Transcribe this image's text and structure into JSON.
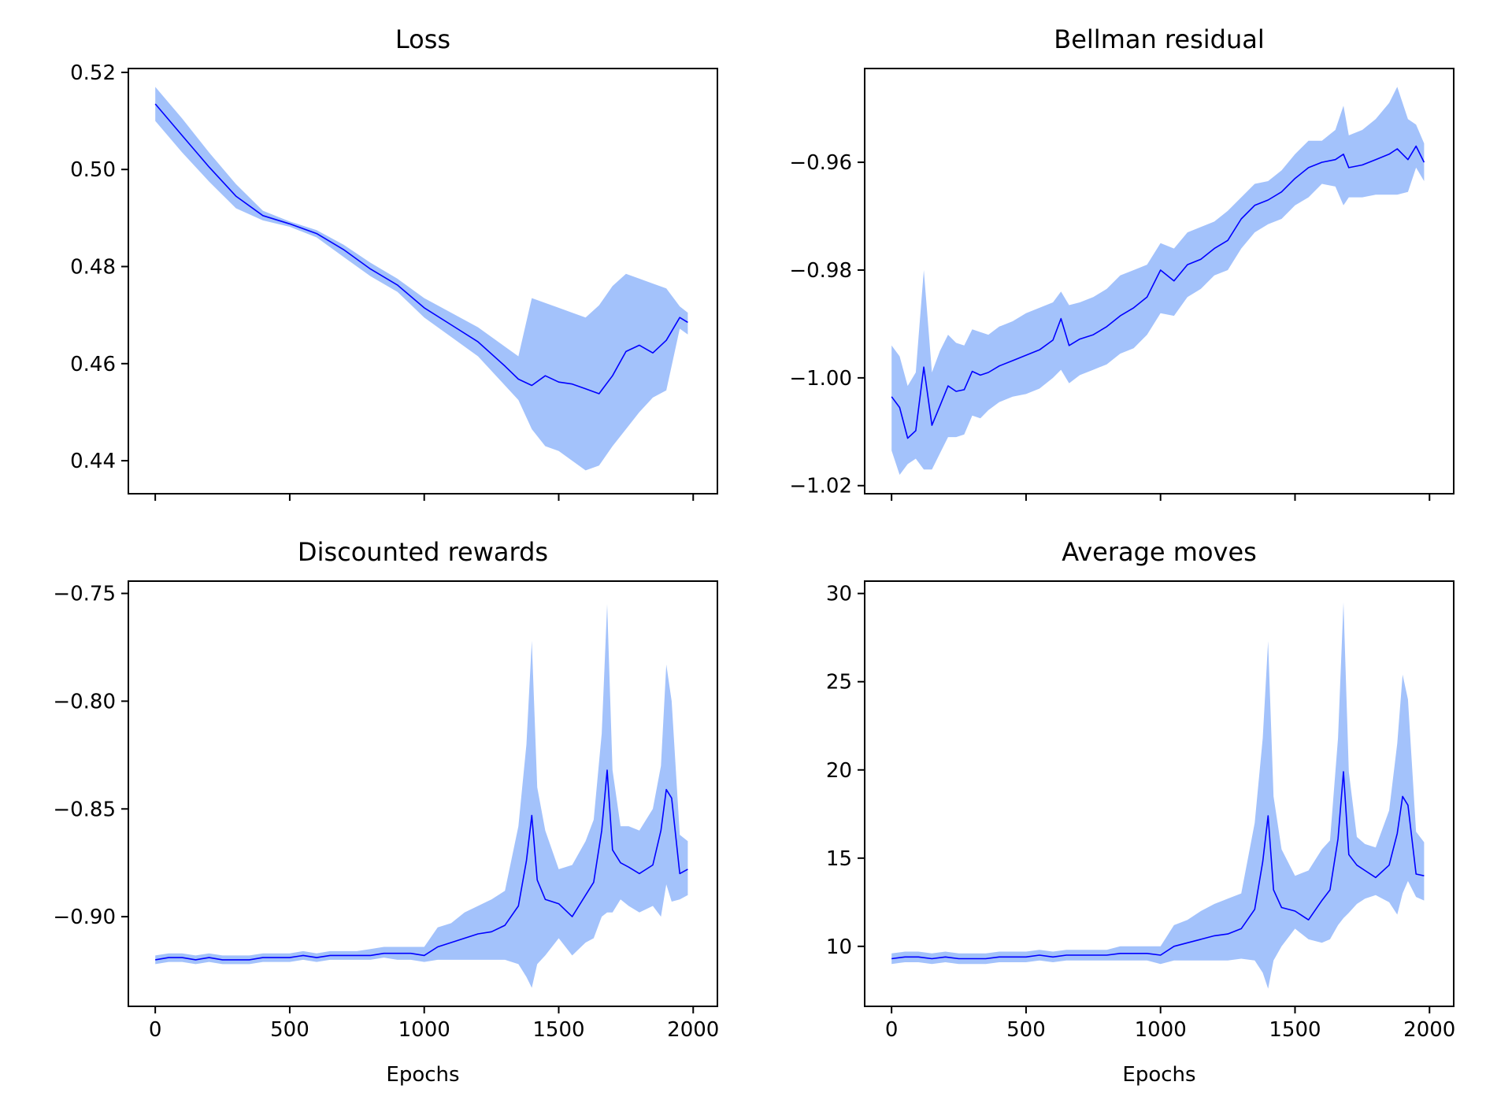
{
  "figure": {
    "xlabel": "Epochs"
  },
  "chart_data": [
    {
      "type": "line",
      "title": "Loss",
      "xlabel": "",
      "ylabel": "",
      "xlim": [
        -100,
        2090
      ],
      "ylim": [
        0.4332,
        0.5208
      ],
      "xticks": [
        0,
        500,
        1000,
        1500,
        2000
      ],
      "xtick_labels": [],
      "yticks": [
        0.44,
        0.46,
        0.48,
        0.5,
        0.52
      ],
      "ytick_labels": [
        "0.44",
        "0.46",
        "0.48",
        "0.50",
        "0.52"
      ],
      "band_color": "#a3c2fb",
      "line_color": "#0000ff",
      "series": [
        {
          "x": [
            0,
            100,
            200,
            300,
            400,
            500,
            600,
            700,
            800,
            900,
            1000,
            1100,
            1200,
            1300,
            1350,
            1400,
            1450,
            1500,
            1550,
            1600,
            1650,
            1700,
            1750,
            1800,
            1850,
            1900,
            1950,
            1980
          ],
          "mean": [
            0.5135,
            0.507,
            0.5005,
            0.4945,
            0.4905,
            0.4888,
            0.4868,
            0.4835,
            0.4795,
            0.4762,
            0.4715,
            0.468,
            0.4645,
            0.4595,
            0.4568,
            0.4555,
            0.4575,
            0.4562,
            0.4558,
            0.4548,
            0.4538,
            0.4575,
            0.4625,
            0.4638,
            0.4622,
            0.4648,
            0.4695,
            0.4685
          ],
          "upper": [
            0.517,
            0.5105,
            0.5035,
            0.497,
            0.4915,
            0.4893,
            0.4875,
            0.4845,
            0.4808,
            0.4775,
            0.4735,
            0.4705,
            0.4675,
            0.4635,
            0.4615,
            0.4735,
            0.4725,
            0.4715,
            0.4705,
            0.4695,
            0.472,
            0.476,
            0.4785,
            0.4775,
            0.4765,
            0.4755,
            0.4718,
            0.4705
          ],
          "lower": [
            0.51,
            0.5035,
            0.4975,
            0.492,
            0.4895,
            0.4882,
            0.486,
            0.482,
            0.478,
            0.4748,
            0.4695,
            0.4655,
            0.4615,
            0.4555,
            0.4525,
            0.4465,
            0.443,
            0.442,
            0.44,
            0.438,
            0.439,
            0.443,
            0.4465,
            0.45,
            0.453,
            0.4545,
            0.4672,
            0.466
          ]
        }
      ]
    },
    {
      "type": "line",
      "title": "Bellman residual",
      "xlabel": "",
      "ylabel": "",
      "xlim": [
        -100,
        2090
      ],
      "ylim": [
        -1.0215,
        -0.9426
      ],
      "xticks": [
        0,
        500,
        1000,
        1500,
        2000
      ],
      "xtick_labels": [],
      "yticks": [
        -1.02,
        -1.0,
        -0.98,
        -0.96
      ],
      "ytick_labels": [
        "−1.02",
        "−1.00",
        "−0.98",
        "−0.96"
      ],
      "band_color": "#a3c2fb",
      "line_color": "#0000ff",
      "series": [
        {
          "x": [
            0,
            30,
            60,
            90,
            120,
            150,
            180,
            210,
            240,
            270,
            300,
            330,
            360,
            400,
            450,
            500,
            550,
            600,
            630,
            660,
            700,
            750,
            800,
            850,
            900,
            950,
            1000,
            1050,
            1100,
            1150,
            1200,
            1250,
            1300,
            1350,
            1400,
            1450,
            1500,
            1550,
            1600,
            1650,
            1680,
            1700,
            1750,
            1800,
            1850,
            1880,
            1920,
            1950,
            1980
          ],
          "mean": [
            -1.0035,
            -1.0055,
            -1.0112,
            -1.0098,
            -0.998,
            -1.0088,
            -1.0052,
            -1.0015,
            -1.0025,
            -1.0022,
            -0.9988,
            -0.9995,
            -0.999,
            -0.9978,
            -0.9968,
            -0.9958,
            -0.9948,
            -0.993,
            -0.989,
            -0.994,
            -0.9928,
            -0.992,
            -0.9905,
            -0.9885,
            -0.987,
            -0.985,
            -0.98,
            -0.982,
            -0.979,
            -0.978,
            -0.976,
            -0.9745,
            -0.9705,
            -0.968,
            -0.967,
            -0.9655,
            -0.963,
            -0.961,
            -0.96,
            -0.9595,
            -0.9585,
            -0.961,
            -0.9605,
            -0.9595,
            -0.9585,
            -0.9575,
            -0.9595,
            -0.957,
            -0.96
          ],
          "upper": [
            -0.994,
            -0.996,
            -1.0015,
            -0.999,
            -0.98,
            -0.999,
            -0.995,
            -0.992,
            -0.9935,
            -0.994,
            -0.991,
            -0.9915,
            -0.992,
            -0.9905,
            -0.9895,
            -0.988,
            -0.987,
            -0.986,
            -0.984,
            -0.9865,
            -0.986,
            -0.985,
            -0.9835,
            -0.981,
            -0.98,
            -0.979,
            -0.975,
            -0.976,
            -0.973,
            -0.972,
            -0.971,
            -0.969,
            -0.9665,
            -0.964,
            -0.9635,
            -0.9615,
            -0.9585,
            -0.956,
            -0.956,
            -0.954,
            -0.9495,
            -0.955,
            -0.954,
            -0.952,
            -0.949,
            -0.946,
            -0.952,
            -0.953,
            -0.9565
          ],
          "lower": [
            -1.0135,
            -1.018,
            -1.016,
            -1.015,
            -1.017,
            -1.017,
            -1.014,
            -1.011,
            -1.011,
            -1.0105,
            -1.007,
            -1.0075,
            -1.006,
            -1.0045,
            -1.0035,
            -1.003,
            -1.002,
            -1.0,
            -0.9985,
            -1.001,
            -0.9995,
            -0.9985,
            -0.9975,
            -0.9955,
            -0.9945,
            -0.992,
            -0.988,
            -0.9885,
            -0.985,
            -0.9835,
            -0.981,
            -0.98,
            -0.976,
            -0.973,
            -0.9715,
            -0.9705,
            -0.968,
            -0.9665,
            -0.964,
            -0.9645,
            -0.968,
            -0.9665,
            -0.9665,
            -0.966,
            -0.966,
            -0.966,
            -0.9655,
            -0.961,
            -0.9635
          ]
        }
      ]
    },
    {
      "type": "line",
      "title": "Discounted rewards",
      "xlabel": "Epochs",
      "ylabel": "",
      "xlim": [
        -100,
        2090
      ],
      "ylim": [
        -0.9416,
        -0.7443
      ],
      "xticks": [
        0,
        500,
        1000,
        1500,
        2000
      ],
      "xtick_labels": [
        "0",
        "500",
        "1000",
        "1500",
        "2000"
      ],
      "yticks": [
        -0.9,
        -0.85,
        -0.8,
        -0.75
      ],
      "ytick_labels": [
        "−0.90",
        "−0.85",
        "−0.80",
        "−0.75"
      ],
      "band_color": "#a3c2fb",
      "line_color": "#0000ff",
      "series": [
        {
          "x": [
            0,
            50,
            100,
            150,
            200,
            250,
            300,
            350,
            400,
            450,
            500,
            550,
            600,
            650,
            700,
            750,
            800,
            850,
            900,
            950,
            1000,
            1050,
            1100,
            1150,
            1200,
            1250,
            1300,
            1350,
            1380,
            1400,
            1420,
            1450,
            1500,
            1550,
            1600,
            1630,
            1660,
            1680,
            1700,
            1730,
            1760,
            1800,
            1850,
            1880,
            1900,
            1920,
            1950,
            1980
          ],
          "mean": [
            -0.92,
            -0.919,
            -0.919,
            -0.92,
            -0.919,
            -0.92,
            -0.92,
            -0.92,
            -0.919,
            -0.919,
            -0.919,
            -0.918,
            -0.919,
            -0.918,
            -0.918,
            -0.918,
            -0.918,
            -0.917,
            -0.917,
            -0.917,
            -0.918,
            -0.914,
            -0.912,
            -0.91,
            -0.908,
            -0.907,
            -0.904,
            -0.895,
            -0.874,
            -0.853,
            -0.883,
            -0.892,
            -0.894,
            -0.9,
            -0.89,
            -0.884,
            -0.86,
            -0.832,
            -0.869,
            -0.875,
            -0.877,
            -0.88,
            -0.876,
            -0.86,
            -0.841,
            -0.845,
            -0.88,
            -0.878
          ],
          "upper": [
            -0.918,
            -0.917,
            -0.917,
            -0.918,
            -0.917,
            -0.918,
            -0.918,
            -0.918,
            -0.917,
            -0.917,
            -0.917,
            -0.916,
            -0.917,
            -0.916,
            -0.916,
            -0.916,
            -0.915,
            -0.914,
            -0.914,
            -0.914,
            -0.914,
            -0.905,
            -0.903,
            -0.898,
            -0.895,
            -0.892,
            -0.888,
            -0.858,
            -0.82,
            -0.772,
            -0.84,
            -0.86,
            -0.878,
            -0.876,
            -0.865,
            -0.855,
            -0.815,
            -0.755,
            -0.832,
            -0.858,
            -0.858,
            -0.86,
            -0.85,
            -0.83,
            -0.783,
            -0.8,
            -0.862,
            -0.865
          ],
          "lower": [
            -0.922,
            -0.921,
            -0.921,
            -0.922,
            -0.921,
            -0.922,
            -0.922,
            -0.922,
            -0.921,
            -0.921,
            -0.921,
            -0.92,
            -0.921,
            -0.92,
            -0.92,
            -0.92,
            -0.92,
            -0.919,
            -0.92,
            -0.92,
            -0.921,
            -0.92,
            -0.92,
            -0.92,
            -0.92,
            -0.92,
            -0.92,
            -0.922,
            -0.928,
            -0.933,
            -0.922,
            -0.918,
            -0.91,
            -0.918,
            -0.912,
            -0.91,
            -0.9,
            -0.898,
            -0.898,
            -0.892,
            -0.895,
            -0.898,
            -0.895,
            -0.9,
            -0.885,
            -0.893,
            -0.892,
            -0.89
          ]
        }
      ]
    },
    {
      "type": "line",
      "title": "Average moves",
      "xlabel": "Epochs",
      "ylabel": "",
      "xlim": [
        -100,
        2090
      ],
      "ylim": [
        6.6,
        30.7
      ],
      "xticks": [
        0,
        500,
        1000,
        1500,
        2000
      ],
      "xtick_labels": [
        "0",
        "500",
        "1000",
        "1500",
        "2000"
      ],
      "yticks": [
        10,
        15,
        20,
        25,
        30
      ],
      "ytick_labels": [
        "10",
        "15",
        "20",
        "25",
        "30"
      ],
      "band_color": "#a3c2fb",
      "line_color": "#0000ff",
      "series": [
        {
          "x": [
            0,
            50,
            100,
            150,
            200,
            250,
            300,
            350,
            400,
            450,
            500,
            550,
            600,
            650,
            700,
            750,
            800,
            850,
            900,
            950,
            1000,
            1050,
            1100,
            1150,
            1200,
            1250,
            1300,
            1350,
            1380,
            1400,
            1420,
            1450,
            1500,
            1550,
            1600,
            1630,
            1660,
            1680,
            1700,
            1730,
            1760,
            1800,
            1850,
            1880,
            1900,
            1920,
            1950,
            1980
          ],
          "mean": [
            9.3,
            9.4,
            9.4,
            9.3,
            9.4,
            9.3,
            9.3,
            9.3,
            9.4,
            9.4,
            9.4,
            9.5,
            9.4,
            9.5,
            9.5,
            9.5,
            9.5,
            9.6,
            9.6,
            9.6,
            9.5,
            10.0,
            10.2,
            10.4,
            10.6,
            10.7,
            11.0,
            12.1,
            14.8,
            17.4,
            13.2,
            12.2,
            12.0,
            11.5,
            12.6,
            13.2,
            16.1,
            19.9,
            15.2,
            14.6,
            14.3,
            13.9,
            14.6,
            16.4,
            18.5,
            18.0,
            14.1,
            14.0
          ],
          "upper": [
            9.6,
            9.7,
            9.7,
            9.6,
            9.7,
            9.6,
            9.6,
            9.6,
            9.7,
            9.7,
            9.7,
            9.8,
            9.7,
            9.8,
            9.8,
            9.8,
            9.8,
            10.0,
            10.0,
            10.0,
            10.0,
            11.2,
            11.5,
            12.0,
            12.4,
            12.7,
            13.0,
            17.0,
            21.8,
            27.3,
            18.5,
            15.5,
            14.0,
            14.3,
            15.5,
            16.0,
            21.8,
            29.5,
            19.9,
            16.2,
            15.8,
            15.6,
            17.7,
            21.5,
            25.4,
            24.0,
            16.5,
            15.9
          ],
          "lower": [
            9.0,
            9.1,
            9.1,
            9.0,
            9.1,
            9.0,
            9.0,
            9.0,
            9.1,
            9.1,
            9.1,
            9.2,
            9.1,
            9.2,
            9.2,
            9.2,
            9.2,
            9.2,
            9.2,
            9.2,
            9.0,
            9.2,
            9.2,
            9.2,
            9.2,
            9.2,
            9.3,
            9.2,
            8.5,
            7.6,
            9.2,
            10.0,
            11.0,
            10.4,
            10.2,
            10.4,
            11.2,
            11.6,
            11.9,
            12.4,
            12.7,
            12.9,
            12.5,
            11.8,
            13.0,
            13.7,
            12.8,
            12.6
          ]
        }
      ]
    }
  ]
}
